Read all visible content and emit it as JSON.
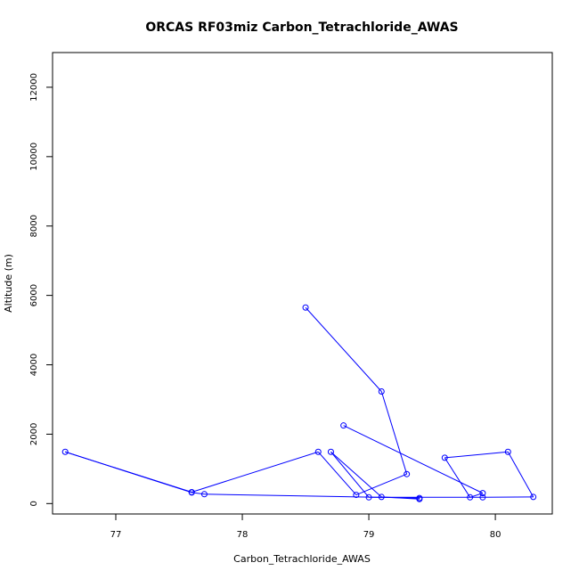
{
  "chart_data": {
    "type": "line",
    "title": "ORCAS RF03miz Carbon_Tetrachloride_AWAS",
    "xlabel": "Carbon_Tetrachloride_AWAS",
    "ylabel": "Altitude (m)",
    "xlim": [
      76.5,
      80.45
    ],
    "ylim": [
      -300,
      13000
    ],
    "xticks": [
      77,
      78,
      79,
      80
    ],
    "yticks": [
      0,
      2000,
      4000,
      6000,
      8000,
      10000,
      12000
    ],
    "grid": false,
    "legend": "none",
    "series": [
      {
        "color": "#0000ff",
        "marker": "open-circle",
        "points": [
          {
            "x": 78.5,
            "y": 5650
          },
          {
            "x": 79.1,
            "y": 3230
          },
          {
            "x": 79.3,
            "y": 850
          },
          {
            "x": 78.9,
            "y": 250
          },
          {
            "x": 78.6,
            "y": 1490
          },
          {
            "x": 77.6,
            "y": 330
          },
          {
            "x": 76.6,
            "y": 1490
          },
          {
            "x": 77.6,
            "y": 320
          },
          {
            "x": 77.7,
            "y": 270
          },
          {
            "x": 79.4,
            "y": 160
          },
          {
            "x": 79.4,
            "y": 130
          },
          {
            "x": 79.1,
            "y": 190
          },
          {
            "x": 78.7,
            "y": 1490
          },
          {
            "x": 79.0,
            "y": 180
          },
          {
            "x": 79.9,
            "y": 180
          },
          {
            "x": 80.3,
            "y": 190
          },
          {
            "x": 80.1,
            "y": 1490
          },
          {
            "x": 79.6,
            "y": 1320
          },
          {
            "x": 79.8,
            "y": 180
          },
          {
            "x": 79.9,
            "y": 300
          },
          {
            "x": 78.8,
            "y": 2250
          }
        ]
      }
    ]
  }
}
